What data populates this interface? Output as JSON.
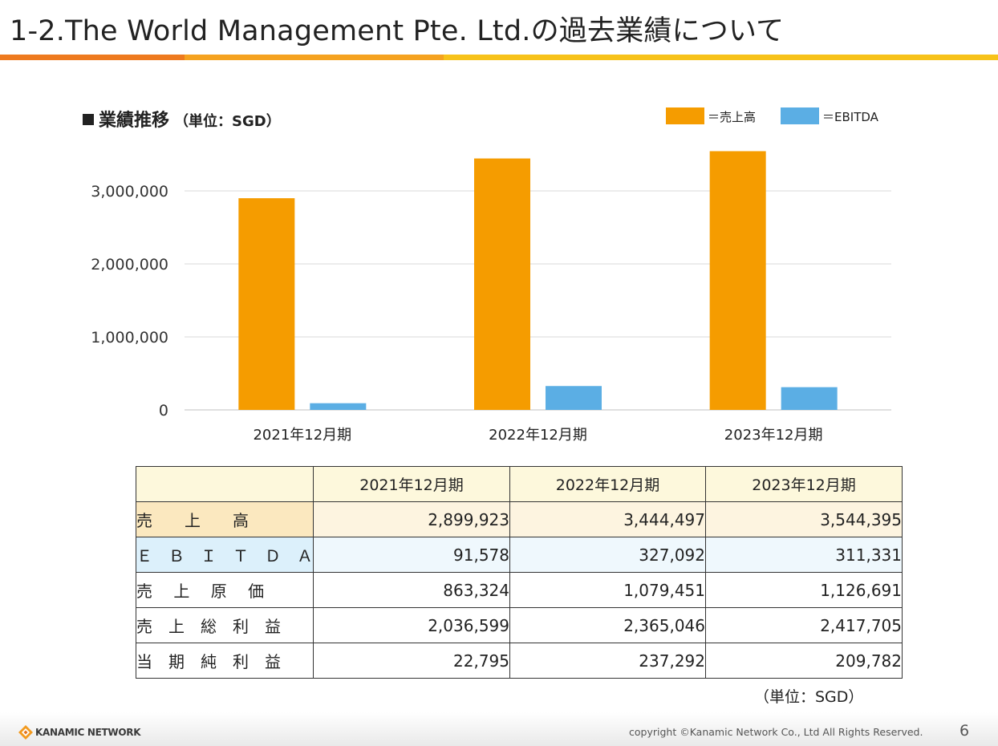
{
  "slide": {
    "title": "1-2.The World Management Pte. Ltd.の過去業績について",
    "page_number": "6",
    "copyright": "copyright ©Kanamic Network Co., Ltd All Rights Reserved.",
    "logo_text": "KANAMIC NETWORK"
  },
  "chart_heading": {
    "label": "業績推移",
    "unit": "（単位：SGD）"
  },
  "legend": [
    {
      "label": "＝売上高",
      "color": "#f59c00"
    },
    {
      "label": "＝EBITDA",
      "color": "#5baee4"
    }
  ],
  "chart_data": {
    "type": "bar",
    "title": "業績推移（単位：SGD）",
    "categories": [
      "2021年12月期",
      "2022年12月期",
      "2023年12月期"
    ],
    "series": [
      {
        "name": "売上高",
        "color": "#f59c00",
        "values": [
          2899923,
          3444497,
          3544395
        ]
      },
      {
        "name": "EBITDA",
        "color": "#5baee4",
        "values": [
          91578,
          327092,
          311331
        ]
      }
    ],
    "y_ticks": [
      0,
      1000000,
      2000000,
      3000000
    ],
    "y_tick_labels": [
      "0",
      "1,000,000",
      "2,000,000",
      "3,000,000"
    ],
    "ylim": [
      0,
      3600000
    ],
    "xlabel": "",
    "ylabel": "",
    "grid": true
  },
  "table": {
    "headers": [
      "",
      "2021年12月期",
      "2022年12月期",
      "2023年12月期"
    ],
    "rows": [
      {
        "label": "売　　上　　高",
        "values": [
          "2,899,923",
          "3,444,497",
          "3,544,395"
        ]
      },
      {
        "label": "Ｅ　Ｂ　Ｉ　Ｔ　Ｄ　Ａ",
        "values": [
          "91,578",
          "327,092",
          "311,331"
        ]
      },
      {
        "label": "売　 上　 原　 価",
        "values": [
          "863,324",
          "1,079,451",
          "1,126,691"
        ]
      },
      {
        "label": "売　上　総　利　益",
        "values": [
          "2,036,599",
          "2,365,046",
          "2,417,705"
        ]
      },
      {
        "label": "当　期　純　利　益",
        "values": [
          "22,795",
          "237,292",
          "209,782"
        ]
      }
    ],
    "unit_note": "（単位：SGD）"
  }
}
